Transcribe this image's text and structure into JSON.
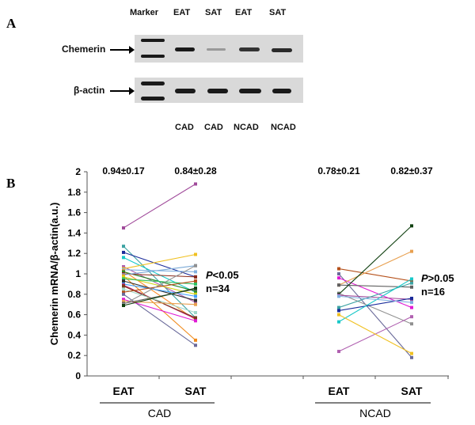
{
  "panel_a": {
    "label": "A",
    "lanes": [
      "Marker",
      "EAT",
      "SAT",
      "EAT",
      "SAT"
    ],
    "groups": [
      "CAD",
      "CAD",
      "NCAD",
      "NCAD"
    ],
    "rows": [
      "Chemerin",
      "β-actin"
    ]
  },
  "panel_b": {
    "label": "B"
  },
  "chart_data": {
    "type": "line",
    "ylabel": "Chemerin mRNA/β-actin(a.u.)",
    "ylim": [
      0,
      2
    ],
    "yticks": [
      "0",
      "0.2",
      "0.4",
      "0.6",
      "0.8",
      "1",
      "1.2",
      "1.4",
      "1.6",
      "1.8",
      "2"
    ],
    "groups": [
      {
        "name": "CAD",
        "categories": [
          "EAT",
          "SAT"
        ],
        "means": [
          "0.94±0.17",
          "0.84±0.28"
        ],
        "p_prefix": "P",
        "p_text": "<0.05",
        "n_text": "n=34",
        "pairs": [
          [
            1.45,
            1.88
          ],
          [
            1.27,
            0.57
          ],
          [
            1.21,
            0.97
          ],
          [
            1.16,
            0.82
          ],
          [
            1.07,
            0.72
          ],
          [
            1.05,
            1.19
          ],
          [
            1.04,
            1.02
          ],
          [
            1.03,
            0.55
          ],
          [
            1.02,
            0.83
          ],
          [
            1.0,
            0.97
          ],
          [
            0.99,
            1.08
          ],
          [
            0.98,
            0.35
          ],
          [
            0.97,
            0.8
          ],
          [
            0.95,
            0.9
          ],
          [
            0.93,
            0.74
          ],
          [
            0.9,
            0.78
          ],
          [
            0.89,
            0.56
          ],
          [
            0.88,
            0.57
          ],
          [
            0.85,
            0.62
          ],
          [
            0.82,
            0.93
          ],
          [
            0.8,
            0.3
          ],
          [
            0.75,
            0.54
          ],
          [
            0.73,
            0.7
          ],
          [
            0.71,
            0.85
          ],
          [
            0.7,
            1.08
          ],
          [
            0.69,
            0.86
          ]
        ]
      },
      {
        "name": "NCAD",
        "categories": [
          "EAT",
          "SAT"
        ],
        "means": [
          "0.78±0.21",
          "0.82±0.37"
        ],
        "p_prefix": "P",
        "p_text": ">0.05",
        "n_text": "n=16",
        "pairs": [
          [
            1.05,
            0.93
          ],
          [
            1.0,
            0.18
          ],
          [
            0.96,
            0.67
          ],
          [
            0.89,
            1.22
          ],
          [
            0.89,
            0.87
          ],
          [
            0.81,
            0.51
          ],
          [
            0.8,
            1.47
          ],
          [
            0.79,
            0.75
          ],
          [
            0.67,
            0.91
          ],
          [
            0.64,
            0.76
          ],
          [
            0.53,
            0.95
          ],
          [
            0.24,
            0.58
          ],
          [
            0.6,
            0.22
          ],
          [
            0.78,
            0.72
          ]
        ]
      }
    ],
    "colors": [
      "#a04a9a",
      "#8b2a1a",
      "#9fd7c9",
      "#3ca3a3",
      "#7aa9d6",
      "#b5501a",
      "#1a2b9a",
      "#f08a1a",
      "#6a6a9a",
      "#18c8c8",
      "#d4d41a",
      "#e01ad4",
      "#b060b0",
      "#30c060",
      "#e8a050",
      "#f0c020",
      "#303030",
      "#606060",
      "#80b0e0",
      "#40a0ff",
      "#909090",
      "#ff9030",
      "#c01a6a",
      "#104010",
      "#2a8a2a",
      "#7a3a1a"
    ]
  }
}
